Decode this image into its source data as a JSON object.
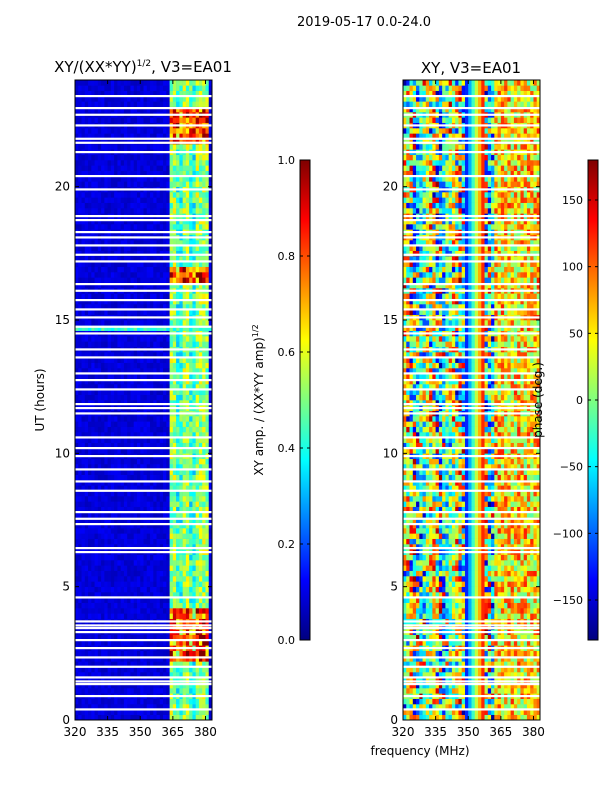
{
  "figure_title": "2019-05-17 0.0-24.0",
  "chart_data": [
    {
      "type": "heatmap",
      "title": "XY/(XX*YY)",
      "title_superscript": "1/2",
      "title_suffix": ", V3=EA01",
      "xlabel": "",
      "ylabel": "UT (hours)",
      "xlim": [
        320,
        383
      ],
      "ylim": [
        0,
        24
      ],
      "xticks": [
        "320",
        "335",
        "350",
        "365",
        "380"
      ],
      "xtick_values": [
        320,
        335,
        350,
        365,
        380
      ],
      "yticks": [
        "0",
        "5",
        "10",
        "15",
        "20"
      ],
      "ytick_values": [
        0,
        5,
        10,
        15,
        20
      ],
      "colorbar": {
        "label": "XY amp. / (XX*YY amp)",
        "label_superscript": "1/2",
        "range": [
          0.0,
          1.0
        ],
        "ticks": [
          "0.0",
          "0.2",
          "0.4",
          "0.6",
          "0.8",
          "1.0"
        ],
        "tick_values": [
          0.0,
          0.2,
          0.4,
          0.6,
          0.8,
          1.0
        ]
      },
      "colormap": "jet",
      "grid": false
    },
    {
      "type": "heatmap",
      "title": "XY, V3=EA01",
      "xlabel": "frequency (MHz)",
      "ylabel": "",
      "xlim": [
        320,
        383
      ],
      "ylim": [
        0,
        24
      ],
      "xticks": [
        "320",
        "335",
        "350",
        "365",
        "380"
      ],
      "xtick_values": [
        320,
        335,
        350,
        365,
        380
      ],
      "yticks": [
        "0",
        "5",
        "10",
        "15",
        "20"
      ],
      "ytick_values": [
        0,
        5,
        10,
        15,
        20
      ],
      "colorbar": {
        "label": "phase (deg.)",
        "range": [
          -180,
          180
        ],
        "ticks": [
          "−150",
          "−100",
          "−50",
          "0",
          "50",
          "100",
          "150"
        ],
        "tick_values": [
          -150,
          -100,
          -50,
          0,
          50,
          100,
          150
        ]
      },
      "colormap": "jet",
      "grid": false
    }
  ],
  "flagged_ut_hours": [
    0.4,
    0.9,
    1.35,
    1.45,
    1.6,
    2.0,
    2.35,
    2.7,
    3.0,
    3.3,
    3.45,
    3.55,
    3.7,
    4.6,
    6.3,
    6.45,
    7.35,
    7.55,
    7.8,
    8.6,
    8.95,
    9.4,
    9.9,
    10.2,
    10.6,
    11.5,
    11.7,
    11.85,
    12.4,
    12.75,
    13.0,
    13.6,
    13.9,
    14.5,
    14.75,
    15.1,
    15.4,
    15.75,
    16.1,
    16.35,
    17.2,
    17.45,
    17.8,
    18.1,
    18.3,
    18.75,
    18.9,
    19.9,
    20.4,
    21.3,
    21.65,
    21.8,
    22.3,
    22.7,
    22.95,
    23.4
  ]
}
